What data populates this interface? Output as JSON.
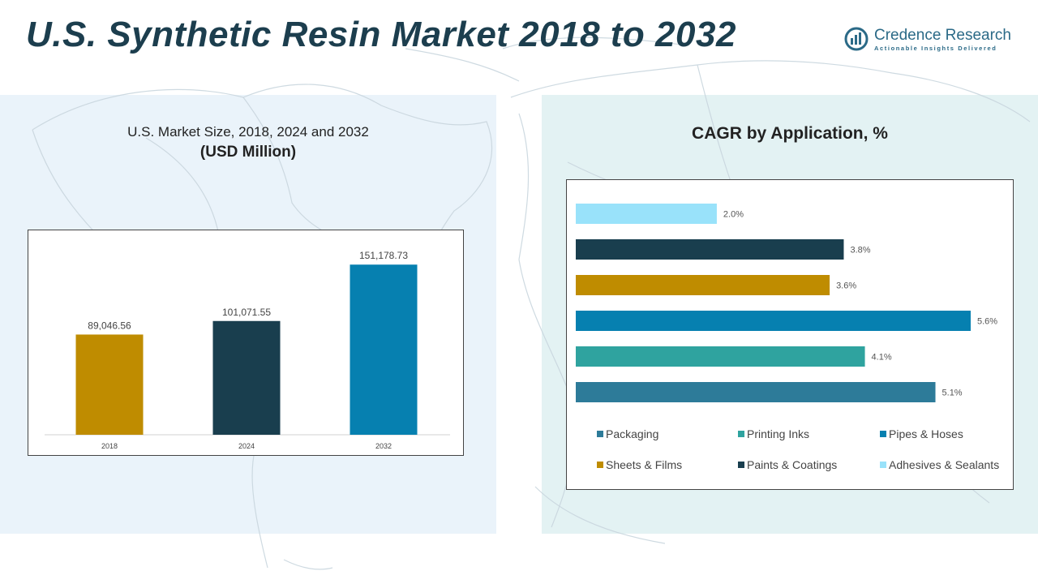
{
  "header": {
    "title": "U.S. Synthetic Resin Market 2018 to 2032"
  },
  "logo": {
    "name": "Credence Research",
    "tagline": "Actionable Insights Delivered"
  },
  "chart_data": [
    {
      "type": "bar",
      "title": "U.S. Market Size, 2018, 2024 and 2032",
      "subtitle": "(USD Million)",
      "categories": [
        "2018",
        "2024",
        "2032"
      ],
      "values": [
        89046.56,
        101071.55,
        151178.73
      ],
      "value_labels": [
        "89,046.56",
        "101,071.55",
        "151,178.73"
      ],
      "colors": [
        "#bf8c00",
        "#193e4e",
        "#0680b0"
      ],
      "ylim": [
        0,
        160000
      ],
      "grid": false,
      "legend": "none"
    },
    {
      "type": "bar",
      "orientation": "horizontal",
      "title": "CAGR by Application, %",
      "categories": [
        "Adhesives & Sealants",
        "Paints & Coatings",
        "Sheets & Films",
        "Pipes & Hoses",
        "Printing Inks",
        "Packaging"
      ],
      "values": [
        2.0,
        3.8,
        3.6,
        5.6,
        4.1,
        5.1
      ],
      "value_labels": [
        "2.0%",
        "3.8%",
        "3.6%",
        "5.6%",
        "4.1%",
        "5.1%"
      ],
      "colors": [
        "#99e2fa",
        "#193e4e",
        "#bf8c00",
        "#0680b0",
        "#2fa39f",
        "#2d7b99"
      ],
      "xlim": [
        0,
        5.6
      ],
      "grid": false,
      "legend": "bottom",
      "legend_entries": [
        {
          "label": "Packaging",
          "color": "#2d7b99"
        },
        {
          "label": "Printing Inks",
          "color": "#2fa39f"
        },
        {
          "label": "Pipes & Hoses",
          "color": "#0680b0"
        },
        {
          "label": "Sheets & Films",
          "color": "#bf8c00"
        },
        {
          "label": "Paints & Coatings",
          "color": "#193e4e"
        },
        {
          "label": "Adhesives & Sealants",
          "color": "#99e2fa"
        }
      ]
    }
  ]
}
